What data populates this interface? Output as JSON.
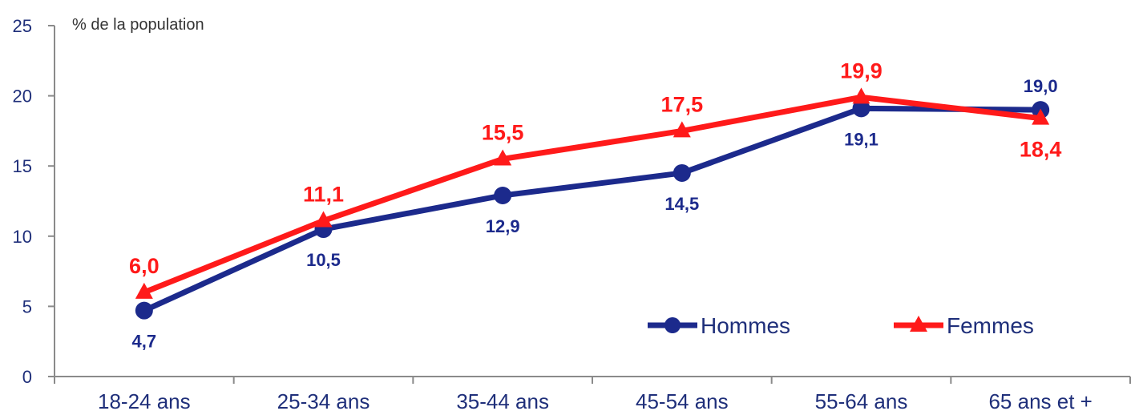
{
  "chart_data": {
    "type": "line",
    "title": "",
    "ylabel": "% de la population",
    "xlabel": "",
    "categories": [
      "18-24 ans",
      "25-34 ans",
      "35-44 ans",
      "45-54 ans",
      "55-64 ans",
      "65 ans et +"
    ],
    "ylim": [
      0,
      25
    ],
    "yticks": [
      "0",
      "5",
      "10",
      "15",
      "20",
      "25"
    ],
    "grid": false,
    "legend_position": "bottom-right",
    "series": [
      {
        "name": "Hommes",
        "values": [
          4.7,
          10.5,
          12.9,
          14.5,
          19.1,
          19.0
        ],
        "labels": [
          "4,7",
          "10,5",
          "12,9",
          "14,5",
          "19,1",
          "19,0"
        ],
        "label_side": [
          "below",
          "below",
          "below",
          "below",
          "below",
          "above"
        ],
        "color": "#1c2a8c",
        "marker": "circle"
      },
      {
        "name": "Femmes",
        "values": [
          6.0,
          11.1,
          15.5,
          17.5,
          19.9,
          18.4
        ],
        "labels": [
          "6,0",
          "11,1",
          "15,5",
          "17,5",
          "19,9",
          "18,4"
        ],
        "label_side": [
          "above",
          "above",
          "above",
          "above",
          "above",
          "below"
        ],
        "color": "#ff1a1a",
        "marker": "triangle"
      }
    ]
  }
}
